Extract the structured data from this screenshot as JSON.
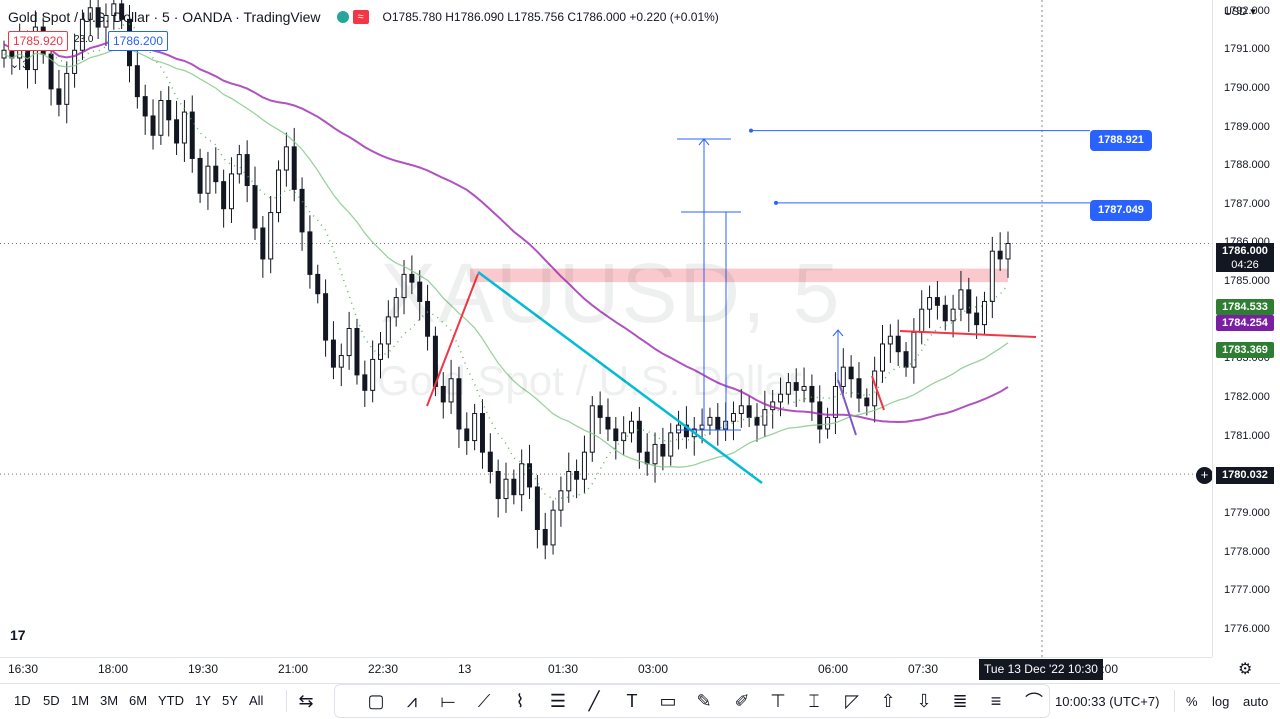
{
  "header": {
    "symbol_title": "Gold Spot / U.S. Dollar · 5 · OANDA · TradingView",
    "wave_icon": "≈",
    "ohlc": "O1785.780 H1786.090 L1785.756 C1786.000 +0.220 (+0.01%)"
  },
  "trade": {
    "sell_price": "1785.920",
    "spread": "23.0",
    "buy_price": "1786.200",
    "collapse_count": "3"
  },
  "watermark": {
    "ticker": "XAUUSD, 5",
    "description": "Gold Spot / U.S. Dollar"
  },
  "logo_text": "17",
  "price_axis": {
    "currency": "USD",
    "ticks": [
      "1792.000",
      "1791.000",
      "1790.000",
      "1789.000",
      "1788.000",
      "1787.000",
      "1786.000",
      "1785.000",
      "1784.000",
      "1783.000",
      "1782.000",
      "1781.000",
      "1780.000",
      "1779.000",
      "1778.000",
      "1777.000",
      "1776.000"
    ],
    "last_price": "1786.000",
    "countdown": "04:26",
    "ma_fast": "1784.533",
    "ma_slow": "1784.254",
    "ma_long": "1783.369",
    "crosshair_price": "1780.032",
    "line_upper": "1788.921",
    "line_lower": "1787.049"
  },
  "time_axis": {
    "labels": [
      "16:30",
      "18:00",
      "19:30",
      "21:00",
      "22:30",
      "13",
      "01:30",
      "03:00",
      "06:00",
      "07:30",
      "09:00",
      "12:00"
    ],
    "crosshair_time": "Tue 13 Dec '22  10:30"
  },
  "bottom_bar": {
    "ranges": [
      "1D",
      "5D",
      "1M",
      "3M",
      "6M",
      "YTD",
      "1Y",
      "5Y",
      "All"
    ],
    "clock": "10:00:33 (UTC+7)",
    "percent": "%",
    "log": "log",
    "auto": "auto"
  },
  "colors": {
    "up": "#131722",
    "ma_purple": "#9c27b0",
    "ma_green": "#81c784",
    "trendline": "#00bcd4",
    "red_line": "#f23645",
    "zone": "#f8bbc0",
    "accent": "#2962ff"
  },
  "chart_data": {
    "type": "candlestick",
    "symbol": "XAUUSD",
    "interval": "5",
    "ylim": [
      1775.3,
      1792.3
    ],
    "horizontal_lines": [
      1788.921,
      1787.049
    ],
    "resistance_zone": [
      1785.0,
      1785.35
    ],
    "current_close": 1786.0,
    "closes": [
      1791.0,
      1790.8,
      1791.2,
      1790.5,
      1791.6,
      1790.9,
      1790.0,
      1789.6,
      1790.4,
      1791.0,
      1791.8,
      1792.1,
      1791.6,
      1791.9,
      1792.2,
      1791.8,
      1790.6,
      1789.8,
      1789.3,
      1788.8,
      1789.7,
      1789.2,
      1788.6,
      1789.4,
      1788.2,
      1787.3,
      1788.0,
      1787.6,
      1786.9,
      1787.8,
      1788.3,
      1787.5,
      1786.4,
      1785.6,
      1786.8,
      1787.9,
      1788.5,
      1787.4,
      1786.3,
      1785.2,
      1784.7,
      1783.5,
      1782.8,
      1783.1,
      1783.8,
      1782.6,
      1782.2,
      1783.0,
      1783.4,
      1784.1,
      1784.6,
      1785.2,
      1785.0,
      1784.5,
      1783.6,
      1782.3,
      1781.9,
      1782.5,
      1781.2,
      1780.9,
      1781.6,
      1780.6,
      1780.1,
      1779.4,
      1779.9,
      1779.5,
      1780.3,
      1779.7,
      1778.6,
      1778.2,
      1779.1,
      1779.6,
      1780.1,
      1779.9,
      1780.6,
      1781.8,
      1781.5,
      1781.2,
      1780.9,
      1781.1,
      1781.4,
      1780.6,
      1780.3,
      1780.8,
      1780.5,
      1781.1,
      1781.3,
      1781.0,
      1781.2,
      1781.3,
      1781.5,
      1781.2,
      1781.4,
      1781.6,
      1781.8,
      1781.5,
      1781.3,
      1781.7,
      1781.9,
      1782.1,
      1782.4,
      1782.2,
      1782.3,
      1781.9,
      1781.2,
      1781.5,
      1782.3,
      1782.8,
      1782.5,
      1782.0,
      1781.8,
      1782.7,
      1783.4,
      1783.6,
      1783.2,
      1782.8,
      1783.7,
      1784.3,
      1784.6,
      1784.4,
      1784.0,
      1784.3,
      1784.8,
      1784.2,
      1783.9,
      1784.5,
      1785.8,
      1785.6,
      1786.0
    ]
  }
}
